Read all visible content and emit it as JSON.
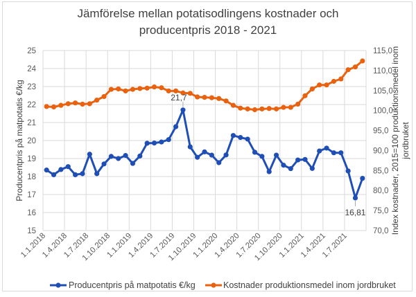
{
  "chart_data": {
    "type": "line",
    "title_lines": [
      "Jämförelse mellan potatisodlingens kostnader och",
      "producentpris 2018 - 2021"
    ],
    "xlabel": "",
    "ylabel": "Producentpris på matpotatis €/kg",
    "y2label_lines": [
      "Index kostnader, 2015=100 produktionsmedel inom",
      "jordbruket"
    ],
    "ylim": [
      15,
      25
    ],
    "y_ticks": [
      "15",
      "16",
      "17",
      "18",
      "19",
      "20",
      "21",
      "22",
      "23",
      "24",
      "25"
    ],
    "y2lim": [
      70,
      115
    ],
    "y2_ticks": [
      "70,0",
      "75,0",
      "80,0",
      "85,0",
      "90,0",
      "95,0",
      "100,0",
      "105,0",
      "110,0",
      "115,0"
    ],
    "x_tick_labels": [
      "1.1.2018",
      "1.4.2018",
      "1.7.2018",
      "1.10.2018",
      "1.1.2019",
      "1.4.2019",
      "1.7.2019",
      "1.10.2019",
      "1.1.2020",
      "1.4.2020",
      "1.7.2020",
      "1.10.2020",
      "1.1.2021",
      "1.4.2021",
      "1.7.2021"
    ],
    "x_months": 45,
    "grid": true,
    "legend_position": "bottom",
    "series": [
      {
        "name": "Producentpris på matpotatis €/kg",
        "axis": "left",
        "color": "#1f4eb4",
        "values": [
          18.36,
          18.1,
          18.39,
          18.55,
          18.1,
          18.16,
          19.24,
          18.16,
          18.7,
          19.12,
          19.0,
          19.17,
          18.73,
          19.14,
          19.85,
          19.86,
          19.92,
          20.05,
          20.77,
          21.7,
          19.65,
          19.07,
          19.37,
          19.19,
          18.77,
          19.2,
          20.28,
          20.17,
          20.08,
          19.35,
          19.12,
          18.27,
          19.19,
          18.63,
          18.44,
          18.92,
          18.95,
          18.45,
          19.42,
          19.58,
          19.32,
          19.32,
          18.31,
          16.81,
          17.9
        ]
      },
      {
        "name": "Kostnader produktionsmedel inom jordbruket",
        "axis": "right",
        "color": "#e8620f",
        "values": [
          101.0,
          100.9,
          101.3,
          101.7,
          101.9,
          101.6,
          101.7,
          102.6,
          103.5,
          105.3,
          105.4,
          104.9,
          105.3,
          105.5,
          105.6,
          105.9,
          105.7,
          104.9,
          104.9,
          104.4,
          104.3,
          103.4,
          103.3,
          103.2,
          103.0,
          102.4,
          101.3,
          100.6,
          100.4,
          100.2,
          100.4,
          100.5,
          100.4,
          100.8,
          100.8,
          101.6,
          103.7,
          105.4,
          106.4,
          106.4,
          107.3,
          107.9,
          110.2,
          110.9,
          112.4
        ]
      }
    ],
    "annotations": [
      {
        "series": 0,
        "index": 19,
        "text": "21,7",
        "position": "above"
      },
      {
        "series": 0,
        "index": 43,
        "text": "16,81",
        "position": "below"
      }
    ]
  }
}
